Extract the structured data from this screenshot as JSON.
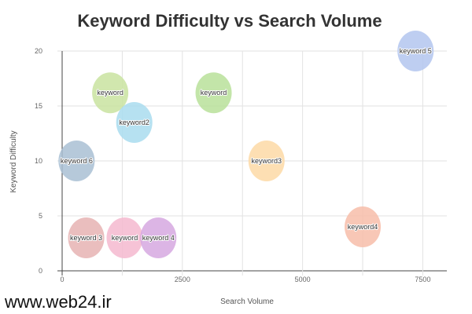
{
  "watermark": "www.web24.ir",
  "chart_data": {
    "type": "scatter",
    "title": "Keyword Difficulty vs Search Volume",
    "xlabel": "Search Volume",
    "ylabel": "Keyword Difficulty",
    "xlim": [
      0,
      8000
    ],
    "ylim": [
      0,
      20
    ],
    "xticks": [
      0,
      2500,
      5000,
      7500
    ],
    "yticks": [
      0,
      5,
      10,
      15,
      20
    ],
    "grid": true,
    "points": [
      {
        "label": "keyword",
        "x": 1000,
        "y": 16.2,
        "color": "#c9e3a0"
      },
      {
        "label": "keyword",
        "x": 3150,
        "y": 16.2,
        "color": "#b9e09a"
      },
      {
        "label": "keyword2",
        "x": 1500,
        "y": 13.5,
        "color": "#a9dcee"
      },
      {
        "label": "keyword 6",
        "x": 300,
        "y": 10,
        "color": "#a9bfd4"
      },
      {
        "label": "keyword3",
        "x": 4250,
        "y": 10,
        "color": "#fdd9a6"
      },
      {
        "label": "keyword 5",
        "x": 7350,
        "y": 20,
        "color": "#b3c6ee"
      },
      {
        "label": "keyword 3",
        "x": 500,
        "y": 3,
        "color": "#e6b3b3"
      },
      {
        "label": "keyword",
        "x": 1300,
        "y": 3,
        "color": "#f4b8cf"
      },
      {
        "label": "keyword 4",
        "x": 2000,
        "y": 3,
        "color": "#d6a8e0"
      },
      {
        "label": "keyword4",
        "x": 6250,
        "y": 4,
        "color": "#f7bda9"
      }
    ]
  }
}
